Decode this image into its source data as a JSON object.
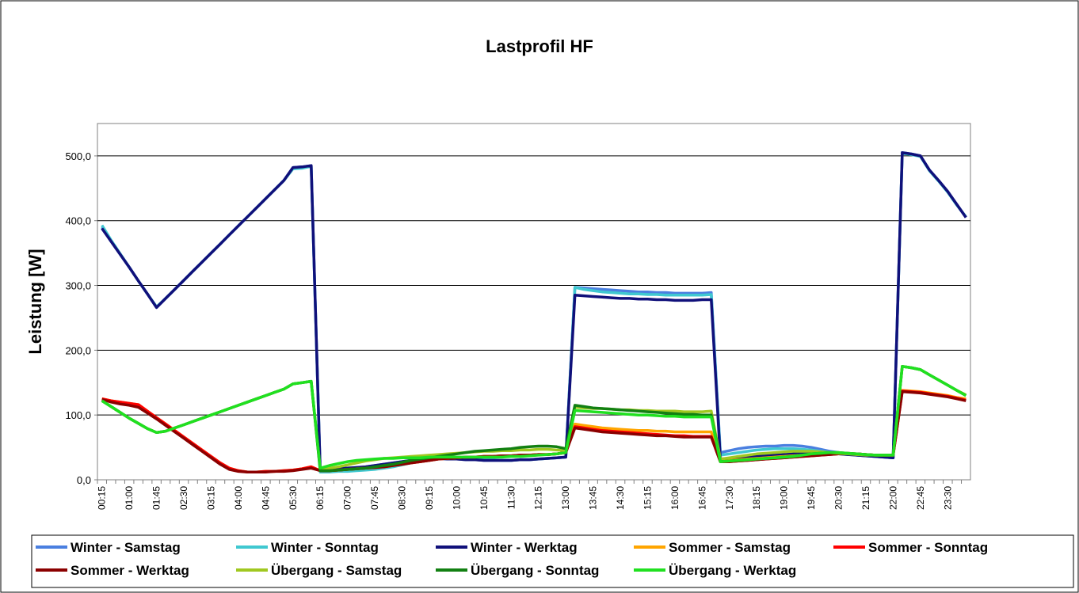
{
  "chart_data": {
    "type": "line",
    "title": "Lastprofil HF",
    "y_label": "Leistung [W]",
    "categories": [
      "00:15",
      null,
      null,
      "01:00",
      null,
      null,
      "01:45",
      null,
      null,
      "02:30",
      null,
      null,
      "03:15",
      null,
      null,
      "04:00",
      null,
      null,
      "04:45",
      null,
      null,
      "05:30",
      null,
      null,
      "06:15",
      null,
      null,
      "07:00",
      null,
      null,
      "07:45",
      null,
      null,
      "08:30",
      null,
      null,
      "09:15",
      null,
      null,
      "10:00",
      null,
      null,
      "10:45",
      null,
      null,
      "11:30",
      null,
      null,
      "12:15",
      null,
      null,
      "13:00",
      null,
      null,
      "13:45",
      null,
      null,
      "14:30",
      null,
      null,
      "15:15",
      null,
      null,
      "16:00",
      null,
      null,
      "16:45",
      null,
      null,
      "17:30",
      null,
      null,
      "18:15",
      null,
      null,
      "19:00",
      null,
      null,
      "19:45",
      null,
      null,
      "20:30",
      null,
      null,
      "21:15",
      null,
      null,
      "22:00",
      null,
      null,
      "22:45",
      null,
      null,
      "23:30",
      null,
      null
    ],
    "ylim": [
      0,
      550
    ],
    "yticks": [
      {
        "value": 0,
        "label": "0,0"
      },
      {
        "value": 100,
        "label": "100,0"
      },
      {
        "value": 200,
        "label": "200,0"
      },
      {
        "value": 300,
        "label": "300,0"
      },
      {
        "value": 400,
        "label": "400,0"
      },
      {
        "value": 500,
        "label": "500,0"
      }
    ],
    "grid": true,
    "legend": "bottom",
    "series": [
      {
        "name": "Winter - Samstag",
        "color": "#4a7fe0",
        "values": [
          390,
          368,
          348,
          328,
          307,
          287,
          266,
          280,
          294,
          308,
          322,
          336,
          350,
          364,
          378,
          392,
          406,
          420,
          434,
          448,
          462,
          482,
          483,
          485,
          15,
          16,
          17,
          18,
          19,
          20,
          22,
          24,
          26,
          28,
          30,
          32,
          33,
          33,
          32,
          32,
          31,
          31,
          30,
          30,
          30,
          30,
          31,
          31,
          32,
          33,
          34,
          35,
          297,
          296,
          295,
          294,
          293,
          292,
          291,
          290,
          290,
          289,
          289,
          288,
          288,
          288,
          288,
          289,
          42,
          45,
          48,
          50,
          51,
          52,
          52,
          53,
          53,
          52,
          50,
          47,
          44,
          42,
          40,
          38,
          37,
          36,
          35,
          34,
          505,
          503,
          500,
          478,
          462,
          445,
          425,
          405
        ]
      },
      {
        "name": "Winter - Sonntag",
        "color": "#40c8d0",
        "values": [
          393,
          370,
          349,
          328,
          307,
          287,
          267,
          280,
          294,
          308,
          322,
          336,
          350,
          364,
          378,
          392,
          406,
          420,
          434,
          448,
          462,
          480,
          481,
          484,
          12,
          12,
          13,
          13,
          14,
          15,
          16,
          18,
          20,
          23,
          26,
          29,
          32,
          33,
          33,
          33,
          32,
          32,
          31,
          31,
          30,
          30,
          31,
          31,
          32,
          33,
          34,
          35,
          297,
          294,
          292,
          290,
          289,
          288,
          287,
          287,
          286,
          286,
          285,
          285,
          285,
          285,
          285,
          286,
          38,
          40,
          42,
          44,
          46,
          47,
          48,
          48,
          48,
          47,
          46,
          44,
          42,
          40,
          39,
          38,
          37,
          36,
          35,
          34,
          504,
          502,
          499,
          477,
          461,
          444,
          424,
          406
        ]
      },
      {
        "name": "Winter - Werktag",
        "color": "#10107a",
        "values": [
          388,
          368,
          348,
          328,
          307,
          287,
          266,
          280,
          294,
          308,
          322,
          336,
          350,
          364,
          378,
          392,
          406,
          420,
          434,
          448,
          462,
          482,
          483,
          485,
          15,
          16,
          17,
          18,
          19,
          20,
          22,
          24,
          26,
          28,
          30,
          32,
          33,
          33,
          32,
          32,
          31,
          31,
          30,
          30,
          30,
          30,
          31,
          31,
          32,
          33,
          34,
          35,
          285,
          284,
          283,
          282,
          281,
          280,
          280,
          279,
          279,
          278,
          278,
          277,
          277,
          277,
          278,
          278,
          32,
          33,
          34,
          35,
          36,
          37,
          38,
          39,
          40,
          41,
          42,
          42,
          41,
          40,
          39,
          38,
          37,
          36,
          35,
          34,
          505,
          503,
          500,
          478,
          462,
          445,
          425,
          405
        ]
      },
      {
        "name": "Sommer - Samstag",
        "color": "#ffa500",
        "values": [
          125,
          122,
          120,
          118,
          116,
          106,
          96,
          86,
          76,
          66,
          56,
          46,
          36,
          26,
          18,
          14,
          12,
          12,
          13,
          13,
          14,
          15,
          17,
          20,
          14,
          14,
          15,
          16,
          17,
          18,
          19,
          20,
          22,
          24,
          26,
          28,
          30,
          32,
          33,
          34,
          35,
          35,
          36,
          36,
          37,
          37,
          38,
          38,
          39,
          39,
          40,
          42,
          86,
          84,
          82,
          80,
          79,
          78,
          77,
          76,
          76,
          75,
          75,
          74,
          74,
          74,
          74,
          74,
          30,
          30,
          31,
          32,
          33,
          34,
          35,
          36,
          37,
          38,
          39,
          40,
          41,
          41,
          41,
          40,
          39,
          38,
          38,
          38,
          138,
          137,
          136,
          134,
          132,
          130,
          127,
          125
        ]
      },
      {
        "name": "Sommer - Sonntag",
        "color": "#ff0000",
        "values": [
          125,
          122,
          120,
          118,
          116,
          106,
          96,
          86,
          76,
          66,
          56,
          46,
          36,
          26,
          18,
          14,
          12,
          12,
          13,
          13,
          14,
          15,
          17,
          20,
          14,
          14,
          15,
          16,
          17,
          18,
          19,
          20,
          22,
          24,
          26,
          28,
          30,
          32,
          33,
          34,
          35,
          35,
          36,
          36,
          37,
          37,
          38,
          38,
          39,
          39,
          40,
          42,
          82,
          80,
          78,
          76,
          75,
          74,
          73,
          72,
          71,
          70,
          69,
          68,
          68,
          67,
          67,
          67,
          28,
          28,
          29,
          30,
          31,
          32,
          33,
          34,
          35,
          36,
          37,
          38,
          39,
          40,
          40,
          40,
          39,
          38,
          38,
          38,
          137,
          136,
          135,
          133,
          131,
          129,
          126,
          123
        ]
      },
      {
        "name": "Sommer - Werktag",
        "color": "#8b0000",
        "values": [
          124,
          120,
          117,
          115,
          112,
          103,
          94,
          84,
          74,
          64,
          54,
          44,
          34,
          24,
          16,
          13,
          12,
          12,
          12,
          13,
          13,
          14,
          16,
          18,
          14,
          14,
          15,
          16,
          17,
          18,
          19,
          20,
          22,
          24,
          26,
          28,
          30,
          32,
          33,
          34,
          35,
          35,
          36,
          36,
          37,
          37,
          38,
          38,
          39,
          39,
          40,
          42,
          80,
          78,
          76,
          74,
          73,
          72,
          71,
          70,
          69,
          68,
          68,
          67,
          66,
          66,
          66,
          66,
          28,
          28,
          29,
          30,
          31,
          32,
          33,
          34,
          35,
          36,
          37,
          38,
          39,
          40,
          40,
          40,
          39,
          38,
          38,
          38,
          136,
          135,
          134,
          132,
          130,
          128,
          125,
          122
        ]
      },
      {
        "name": "Übergang - Samstag",
        "color": "#a0c820",
        "values": [
          122,
          113,
          104,
          95,
          87,
          79,
          73,
          75,
          80,
          85,
          90,
          95,
          100,
          105,
          110,
          115,
          120,
          125,
          130,
          135,
          140,
          148,
          150,
          152,
          16,
          18,
          20,
          23,
          26,
          29,
          31,
          33,
          34,
          35,
          36,
          37,
          38,
          39,
          40,
          41,
          42,
          43,
          44,
          44,
          45,
          45,
          46,
          46,
          47,
          47,
          46,
          45,
          112,
          111,
          110,
          110,
          109,
          108,
          108,
          107,
          107,
          106,
          106,
          106,
          105,
          105,
          105,
          106,
          32,
          34,
          36,
          38,
          40,
          41,
          42,
          43,
          44,
          44,
          44,
          43,
          42,
          41,
          40,
          39,
          38,
          38,
          38,
          38,
          175,
          173,
          170,
          162,
          154,
          146,
          138,
          131
        ]
      },
      {
        "name": "Übergang - Sonntag",
        "color": "#128012",
        "values": [
          122,
          113,
          104,
          95,
          87,
          79,
          73,
          75,
          80,
          85,
          90,
          95,
          100,
          105,
          110,
          115,
          120,
          125,
          130,
          135,
          140,
          148,
          150,
          152,
          14,
          14,
          15,
          16,
          17,
          18,
          20,
          22,
          24,
          27,
          30,
          32,
          34,
          36,
          38,
          40,
          42,
          44,
          45,
          46,
          47,
          48,
          50,
          51,
          52,
          52,
          51,
          48,
          115,
          113,
          111,
          110,
          109,
          108,
          107,
          106,
          105,
          104,
          103,
          102,
          101,
          101,
          100,
          100,
          28,
          29,
          30,
          31,
          32,
          33,
          34,
          35,
          36,
          38,
          40,
          41,
          42,
          42,
          41,
          40,
          39,
          38,
          38,
          38,
          175,
          173,
          170,
          162,
          154,
          146,
          138,
          130
        ]
      },
      {
        "name": "Übergang - Werktag",
        "color": "#20e020",
        "values": [
          122,
          113,
          104,
          95,
          87,
          79,
          73,
          75,
          80,
          85,
          90,
          95,
          100,
          105,
          110,
          115,
          120,
          125,
          130,
          135,
          140,
          148,
          150,
          152,
          18,
          22,
          25,
          28,
          30,
          31,
          32,
          33,
          33,
          34,
          34,
          34,
          35,
          35,
          35,
          35,
          35,
          35,
          35,
          35,
          35,
          36,
          36,
          37,
          38,
          39,
          40,
          42,
          107,
          106,
          105,
          104,
          103,
          102,
          101,
          100,
          100,
          99,
          98,
          98,
          97,
          97,
          97,
          97,
          28,
          29,
          30,
          31,
          32,
          33,
          34,
          35,
          36,
          38,
          40,
          41,
          42,
          42,
          41,
          40,
          39,
          38,
          38,
          38,
          175,
          173,
          170,
          162,
          154,
          146,
          138,
          130
        ]
      }
    ]
  }
}
